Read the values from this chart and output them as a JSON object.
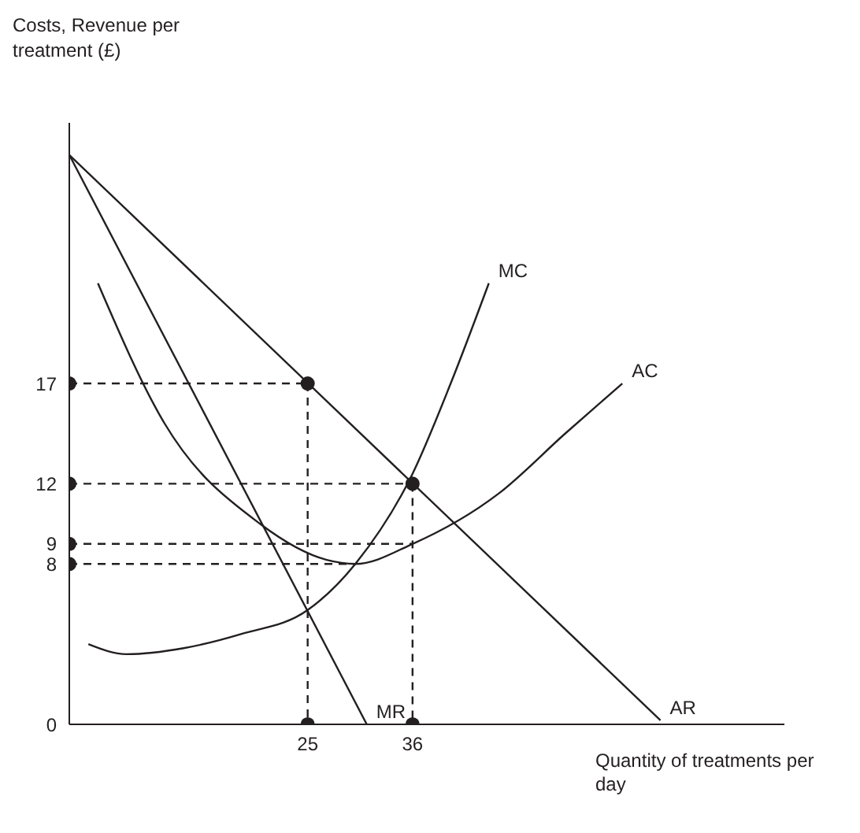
{
  "chart_data": {
    "type": "line",
    "xlabel": "Quantity of treatments per day",
    "ylabel": "Costs, Revenue per treatment (£)",
    "xlim": [
      0,
      75
    ],
    "ylim": [
      0,
      30
    ],
    "xticks": [
      25,
      36
    ],
    "yticks": [
      0,
      8,
      9,
      12,
      17
    ],
    "grid": false,
    "legend": false,
    "series": [
      {
        "name": "AR",
        "color": "#231f20",
        "line_style": "solid",
        "marker": "none",
        "x": [
          0,
          62
        ],
        "values": [
          28.4,
          0.2
        ]
      },
      {
        "name": "MR",
        "color": "#231f20",
        "line_style": "solid",
        "marker": "none",
        "x": [
          0,
          31.2
        ],
        "values": [
          28.4,
          0
        ]
      },
      {
        "name": "MC",
        "color": "#231f20",
        "line_style": "solid",
        "marker": "none",
        "x": [
          2,
          6,
          12,
          18,
          25,
          30,
          36,
          40,
          44
        ],
        "values": [
          4,
          3.5,
          3.8,
          4.5,
          5.7,
          8,
          12.5,
          17,
          22
        ]
      },
      {
        "name": "AC",
        "color": "#231f20",
        "line_style": "solid",
        "marker": "none",
        "x": [
          3,
          10,
          20,
          27,
          30,
          36,
          45,
          52,
          58
        ],
        "values": [
          22,
          15,
          10,
          8.2,
          8,
          9,
          11.5,
          14.5,
          17
        ]
      },
      {
        "type": "line",
        "color": "#231f20",
        "line_style": "dashed",
        "marker": "none",
        "x": [
          0,
          25
        ],
        "values": [
          17,
          17
        ]
      },
      {
        "type": "line",
        "color": "#231f20",
        "line_style": "dashed",
        "marker": "none",
        "x": [
          25,
          25
        ],
        "values": [
          17,
          0
        ]
      },
      {
        "type": "line",
        "color": "#231f20",
        "line_style": "dashed",
        "marker": "none",
        "x": [
          0,
          36
        ],
        "values": [
          12,
          12
        ]
      },
      {
        "type": "line",
        "color": "#231f20",
        "line_style": "dashed",
        "marker": "none",
        "x": [
          36,
          36
        ],
        "values": [
          12,
          0
        ]
      },
      {
        "type": "line",
        "color": "#231f20",
        "line_style": "dashed",
        "marker": "none",
        "x": [
          0,
          36
        ],
        "values": [
          9,
          9
        ]
      },
      {
        "type": "line",
        "color": "#231f20",
        "line_style": "dashed",
        "marker": "none",
        "x": [
          0,
          30
        ],
        "values": [
          8,
          8
        ]
      },
      {
        "type": "scatter",
        "color": "#231f20",
        "marker": "circle",
        "x": [
          0,
          25,
          0,
          36,
          0,
          0,
          25,
          36
        ],
        "values": [
          17,
          17,
          12,
          12,
          9,
          8,
          0,
          0
        ]
      }
    ]
  }
}
